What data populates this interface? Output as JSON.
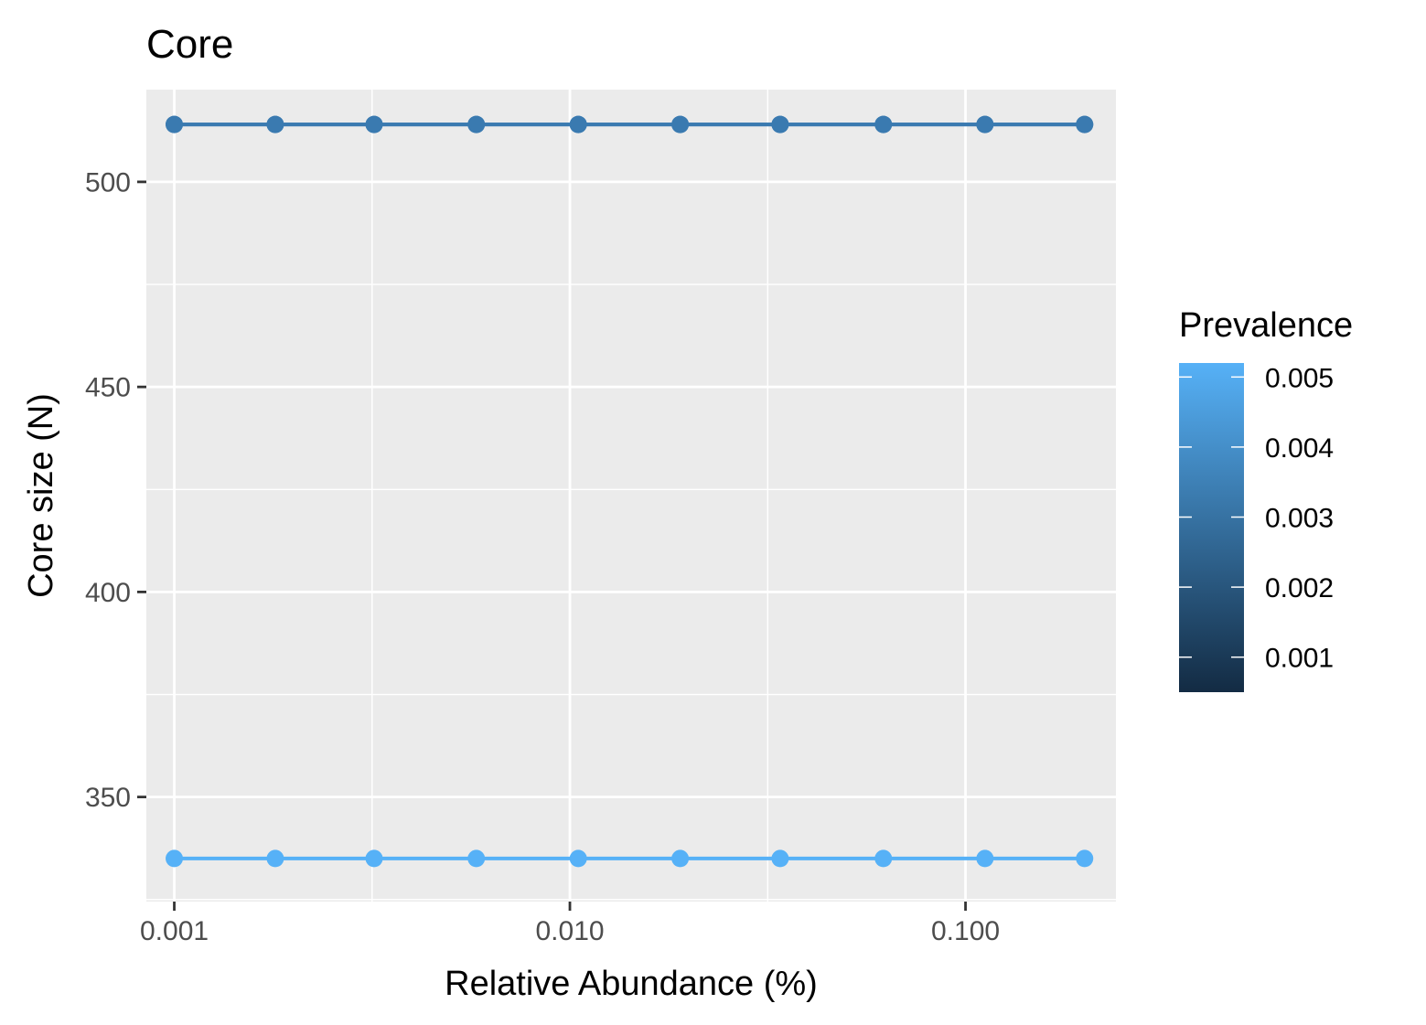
{
  "chart_data": {
    "type": "line",
    "title": "Core",
    "xlabel": "Relative Abundance (%)",
    "ylabel": "Core size (N)",
    "x_scale": "log10",
    "xlim": [
      0.00085,
      0.24
    ],
    "ylim": [
      324.5,
      522.5
    ],
    "x_ticks": [
      0.001,
      0.01,
      0.1
    ],
    "x_tick_labels": [
      "0.001",
      "0.010",
      "0.100"
    ],
    "y_ticks": [
      350,
      400,
      450,
      500
    ],
    "y_tick_labels": [
      "350",
      "400",
      "450",
      "500"
    ],
    "grid": true,
    "legend_position": "right",
    "x": [
      0.001,
      0.0018,
      0.0032,
      0.0058,
      0.0105,
      0.019,
      0.034,
      0.062,
      0.112,
      0.2
    ],
    "series": [
      {
        "prevalence": 0.005,
        "color": "#56B1F7",
        "values": [
          335,
          335,
          335,
          335,
          335,
          335,
          335,
          335,
          335,
          335
        ]
      },
      {
        "prevalence": 0.004,
        "color": "#3F83BC",
        "values": [
          514,
          514,
          514,
          514,
          514,
          514,
          514,
          514,
          514,
          514
        ]
      },
      {
        "prevalence": 0.003,
        "color": "#3A7AB0",
        "values": [
          514,
          514,
          514,
          514,
          514,
          514,
          514,
          514,
          514,
          514
        ]
      }
    ],
    "legend": {
      "title": "Prevalence",
      "low_color": "#132B43",
      "high_color": "#56B1F7",
      "min": 0.0005,
      "max": 0.0052,
      "breaks": [
        0.001,
        0.002,
        0.003,
        0.004,
        0.005
      ],
      "break_labels": [
        "0.001",
        "0.002",
        "0.003",
        "0.004",
        "0.005"
      ]
    }
  }
}
